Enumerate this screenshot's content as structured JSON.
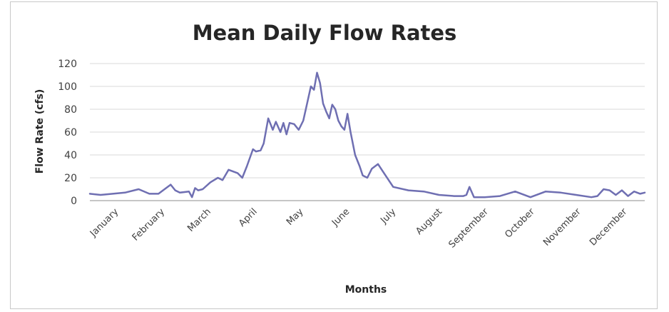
{
  "chart_data": {
    "type": "line",
    "title": "Mean Daily Flow Rates",
    "xlabel": "Months",
    "ylabel": "Flow Rate (cfs)",
    "ylim": [
      0,
      120
    ],
    "yticks": [
      "0",
      "20",
      "40",
      "60",
      "80",
      "100",
      "120"
    ],
    "grid": "horizontal",
    "legend": "none",
    "categories": [
      "January",
      "February",
      "March",
      "April",
      "May",
      "June",
      "July",
      "August",
      "September",
      "October",
      "November",
      "December"
    ],
    "series": [
      {
        "name": "",
        "color": "#6f6fb2",
        "x": [
          1,
          8,
          16,
          24,
          33,
          40,
          46,
          54,
          57,
          60,
          66,
          68,
          70,
          72,
          75,
          80,
          85,
          88,
          92,
          98,
          101,
          104,
          108,
          110,
          113,
          115,
          118,
          121,
          123,
          126,
          128,
          130,
          132,
          135,
          138,
          141,
          143,
          146,
          148,
          150,
          152,
          154,
          156,
          158,
          160,
          162,
          164,
          166,
          168,
          170,
          172,
          175,
          178,
          180,
          183,
          186,
          190,
          195,
          200,
          210,
          220,
          230,
          240,
          246,
          248,
          250,
          253,
          260,
          270,
          280,
          290,
          300,
          310,
          320,
          330,
          334,
          338,
          342,
          346,
          350,
          354,
          358,
          362,
          365
        ],
        "y": [
          6,
          5,
          6,
          7,
          10,
          6,
          6,
          14,
          9,
          7,
          8,
          3,
          11,
          9,
          10,
          16,
          20,
          18,
          27,
          24,
          20,
          30,
          45,
          43,
          44,
          50,
          72,
          62,
          69,
          60,
          68,
          58,
          68,
          67,
          62,
          70,
          82,
          100,
          97,
          112,
          103,
          85,
          78,
          72,
          84,
          80,
          70,
          65,
          62,
          76,
          60,
          40,
          30,
          22,
          20,
          28,
          32,
          22,
          12,
          9,
          8,
          5,
          4,
          4,
          5,
          12,
          3,
          3,
          4,
          8,
          3,
          8,
          7,
          5,
          3,
          4,
          10,
          9,
          5,
          9,
          4,
          8,
          6,
          7
        ]
      }
    ]
  }
}
